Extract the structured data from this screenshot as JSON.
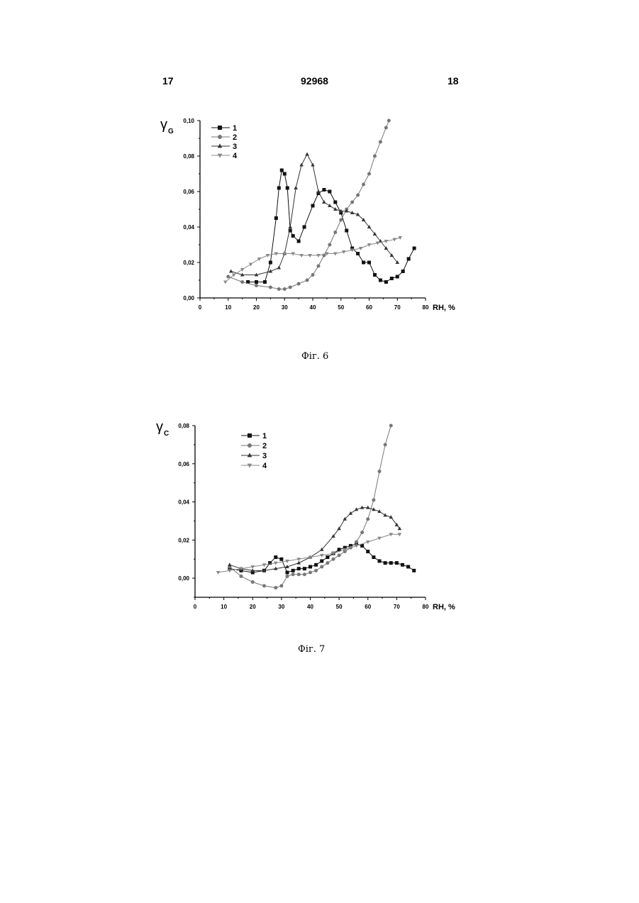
{
  "header": {
    "left": "17",
    "center": "92968",
    "right": "18"
  },
  "figures": [
    {
      "caption": "Фіг. 6"
    },
    {
      "caption": "Фіг. 7"
    }
  ],
  "chart_data": [
    {
      "type": "line",
      "ylabel_symbol": "γ",
      "ylabel_subscript": "G",
      "xlabel": "RH, %",
      "xlim": [
        0,
        80
      ],
      "ylim": [
        0,
        0.1
      ],
      "x_ticks": [
        "0",
        "10",
        "20",
        "30",
        "40",
        "50",
        "60",
        "70",
        "80"
      ],
      "y_ticks": [
        "0,00",
        "0,02",
        "0,04",
        "0,06",
        "0,08",
        "0,10"
      ],
      "legend_position": "top-left",
      "grid": false,
      "series": [
        {
          "name": "1",
          "marker": "square",
          "color": "#111111",
          "x": [
            17,
            20,
            23,
            25,
            27,
            28,
            29,
            30,
            31,
            32,
            33,
            35,
            37,
            40,
            42,
            44,
            46,
            48,
            50,
            52,
            54,
            56,
            58,
            60,
            62,
            64,
            66,
            68,
            70,
            72,
            74,
            76
          ],
          "y": [
            0.009,
            0.009,
            0.009,
            0.02,
            0.045,
            0.062,
            0.072,
            0.07,
            0.062,
            0.038,
            0.035,
            0.032,
            0.04,
            0.052,
            0.059,
            0.061,
            0.06,
            0.054,
            0.048,
            0.038,
            0.028,
            0.025,
            0.02,
            0.02,
            0.013,
            0.01,
            0.009,
            0.011,
            0.012,
            0.015,
            0.022,
            0.028
          ]
        },
        {
          "name": "2",
          "marker": "circle",
          "color": "#777777",
          "x": [
            10,
            15,
            20,
            25,
            28,
            30,
            32,
            35,
            38,
            40,
            42,
            44,
            46,
            48,
            50,
            52,
            54,
            56,
            58,
            60,
            62,
            64,
            66,
            67
          ],
          "y": [
            0.012,
            0.009,
            0.007,
            0.006,
            0.005,
            0.005,
            0.006,
            0.008,
            0.01,
            0.013,
            0.018,
            0.024,
            0.03,
            0.037,
            0.044,
            0.05,
            0.054,
            0.058,
            0.064,
            0.07,
            0.08,
            0.088,
            0.096,
            0.1
          ]
        },
        {
          "name": "3",
          "marker": "triangle-up",
          "color": "#333333",
          "x": [
            11,
            15,
            20,
            25,
            28,
            30,
            32,
            34,
            36,
            38,
            40,
            42,
            44,
            46,
            48,
            50,
            52,
            54,
            56,
            58,
            60,
            62,
            64,
            66,
            68,
            70
          ],
          "y": [
            0.015,
            0.013,
            0.013,
            0.015,
            0.017,
            0.025,
            0.04,
            0.062,
            0.075,
            0.081,
            0.075,
            0.06,
            0.054,
            0.052,
            0.05,
            0.049,
            0.049,
            0.048,
            0.047,
            0.044,
            0.04,
            0.036,
            0.032,
            0.028,
            0.024,
            0.02
          ]
        },
        {
          "name": "4",
          "marker": "triangle-down",
          "color": "#888888",
          "x": [
            9,
            12,
            15,
            18,
            21,
            24,
            27,
            30,
            33,
            36,
            39,
            42,
            45,
            48,
            51,
            54,
            57,
            60,
            63,
            66,
            69,
            71
          ],
          "y": [
            0.009,
            0.013,
            0.016,
            0.019,
            0.022,
            0.024,
            0.025,
            0.025,
            0.025,
            0.024,
            0.024,
            0.024,
            0.025,
            0.025,
            0.026,
            0.027,
            0.028,
            0.03,
            0.031,
            0.032,
            0.033,
            0.034
          ]
        }
      ]
    },
    {
      "type": "line",
      "ylabel_symbol": "γ",
      "ylabel_subscript": "C",
      "xlabel": "RH, %",
      "xlim": [
        0,
        80
      ],
      "ylim": [
        -0.01,
        0.08
      ],
      "x_ticks": [
        "0",
        "10",
        "20",
        "30",
        "40",
        "50",
        "60",
        "70",
        "80"
      ],
      "y_ticks": [
        "0,00",
        "0,02",
        "0,04",
        "0,06",
        "0,08"
      ],
      "legend_position": "top-center",
      "grid": false,
      "series": [
        {
          "name": "1",
          "marker": "square",
          "color": "#111111",
          "x": [
            12,
            16,
            20,
            24,
            26,
            28,
            30,
            32,
            34,
            36,
            38,
            40,
            42,
            44,
            46,
            48,
            50,
            52,
            54,
            56,
            58,
            60,
            62,
            64,
            66,
            68,
            70,
            72,
            74,
            76
          ],
          "y": [
            0.005,
            0.004,
            0.003,
            0.004,
            0.008,
            0.011,
            0.01,
            0.003,
            0.004,
            0.005,
            0.005,
            0.006,
            0.007,
            0.009,
            0.011,
            0.013,
            0.015,
            0.016,
            0.017,
            0.018,
            0.017,
            0.014,
            0.011,
            0.009,
            0.008,
            0.008,
            0.008,
            0.007,
            0.006,
            0.004
          ]
        },
        {
          "name": "2",
          "marker": "circle",
          "color": "#777777",
          "x": [
            12,
            16,
            20,
            24,
            28,
            30,
            32,
            34,
            36,
            38,
            40,
            42,
            44,
            46,
            48,
            50,
            52,
            54,
            56,
            58,
            60,
            62,
            64,
            66,
            68
          ],
          "y": [
            0.006,
            0.001,
            -0.002,
            -0.004,
            -0.005,
            -0.004,
            0.001,
            0.002,
            0.002,
            0.002,
            0.003,
            0.004,
            0.006,
            0.008,
            0.01,
            0.012,
            0.014,
            0.016,
            0.019,
            0.024,
            0.031,
            0.041,
            0.056,
            0.07,
            0.08
          ]
        },
        {
          "name": "3",
          "marker": "triangle-up",
          "color": "#333333",
          "x": [
            12,
            16,
            20,
            24,
            28,
            32,
            36,
            40,
            44,
            48,
            50,
            52,
            54,
            56,
            58,
            60,
            62,
            64,
            66,
            68,
            70,
            71
          ],
          "y": [
            0.007,
            0.005,
            0.004,
            0.004,
            0.005,
            0.006,
            0.008,
            0.011,
            0.015,
            0.022,
            0.026,
            0.031,
            0.034,
            0.036,
            0.037,
            0.037,
            0.036,
            0.035,
            0.033,
            0.032,
            0.028,
            0.026
          ]
        },
        {
          "name": "4",
          "marker": "triangle-down",
          "color": "#888888",
          "x": [
            8,
            12,
            16,
            20,
            24,
            28,
            32,
            36,
            40,
            44,
            48,
            52,
            56,
            60,
            64,
            68,
            71
          ],
          "y": [
            0.003,
            0.004,
            0.005,
            0.006,
            0.007,
            0.008,
            0.009,
            0.01,
            0.011,
            0.012,
            0.013,
            0.015,
            0.017,
            0.019,
            0.021,
            0.023,
            0.023
          ]
        }
      ]
    }
  ]
}
